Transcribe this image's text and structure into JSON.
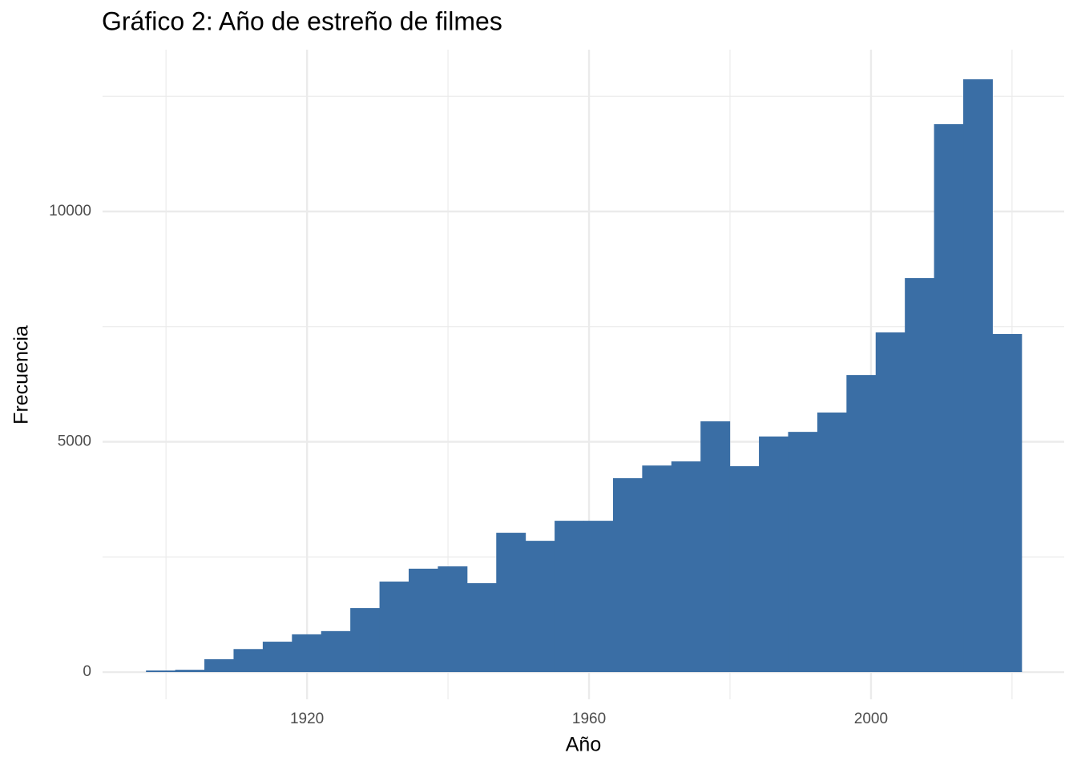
{
  "chart_data": {
    "type": "histogram",
    "title": "Gráfico 2: Año de estreño de filmes",
    "x_label": "Año",
    "y_label": "Frecuencia",
    "color": "#3a6ea5",
    "grid": true,
    "bins": [
      1897.16,
      1901.3,
      1905.44,
      1909.58,
      1913.72,
      1917.86,
      1922.0,
      1926.14,
      1930.28,
      1934.42,
      1938.56,
      1942.7,
      1946.84,
      1950.98,
      1955.12,
      1959.26,
      1963.4,
      1967.54,
      1971.68,
      1975.82,
      1979.96,
      1984.1,
      1988.24,
      1992.38,
      1996.52,
      2000.66,
      2004.8,
      2008.94,
      2013.08,
      2017.22,
      2021.36
    ],
    "values": [
      35,
      50,
      280,
      500,
      660,
      820,
      890,
      1390,
      1965,
      2245,
      2295,
      1930,
      3025,
      2850,
      3285,
      3285,
      4210,
      4485,
      4575,
      5445,
      4470,
      5115,
      5215,
      5635,
      6450,
      7375,
      8555,
      11895,
      12870,
      7340
    ],
    "xlim": [
      1891.0,
      2027.4
    ],
    "xticks": [
      1920,
      1960,
      2000
    ],
    "ylim": [
      -591,
      13513
    ],
    "yticks": [
      0,
      5000,
      10000
    ]
  }
}
